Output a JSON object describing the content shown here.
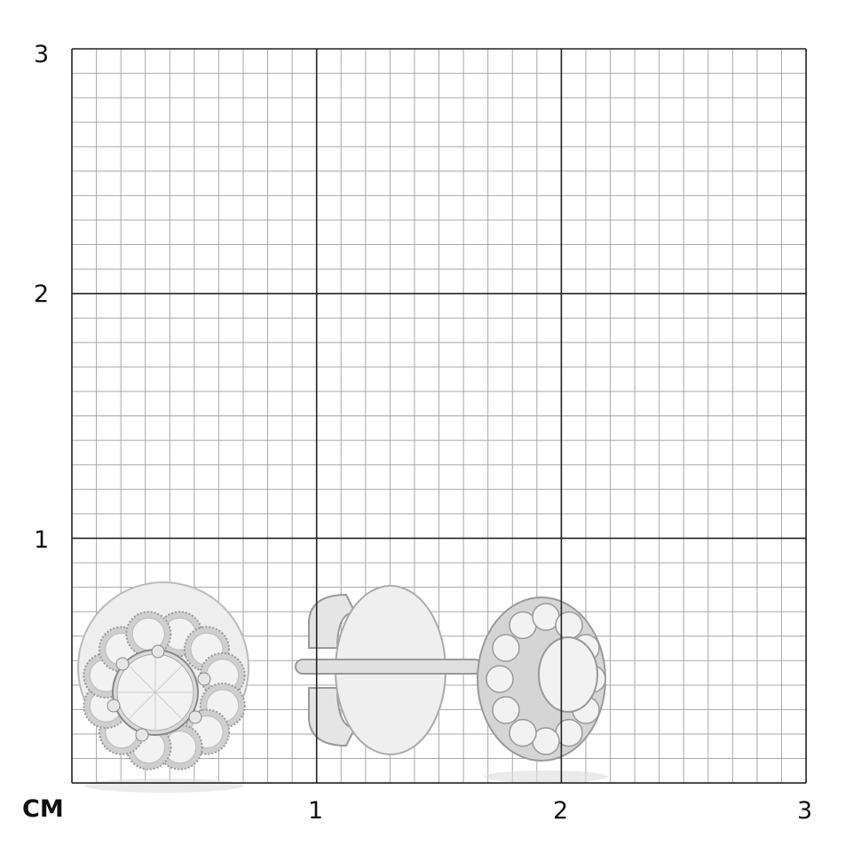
{
  "scale": {
    "unit_label": "CM",
    "x_ticks": [
      "1",
      "2",
      "3"
    ],
    "y_ticks": [
      "3",
      "2",
      "1"
    ],
    "range_cm": [
      0,
      3
    ],
    "minor_divisions_per_cm": 10,
    "major_line_color": "#222222",
    "minor_line_color": "#a8a8a8"
  },
  "product": {
    "views": [
      "front-view",
      "side-view"
    ],
    "metal_color": "#d9d9d9",
    "stone_color": "#f2f2f2"
  }
}
